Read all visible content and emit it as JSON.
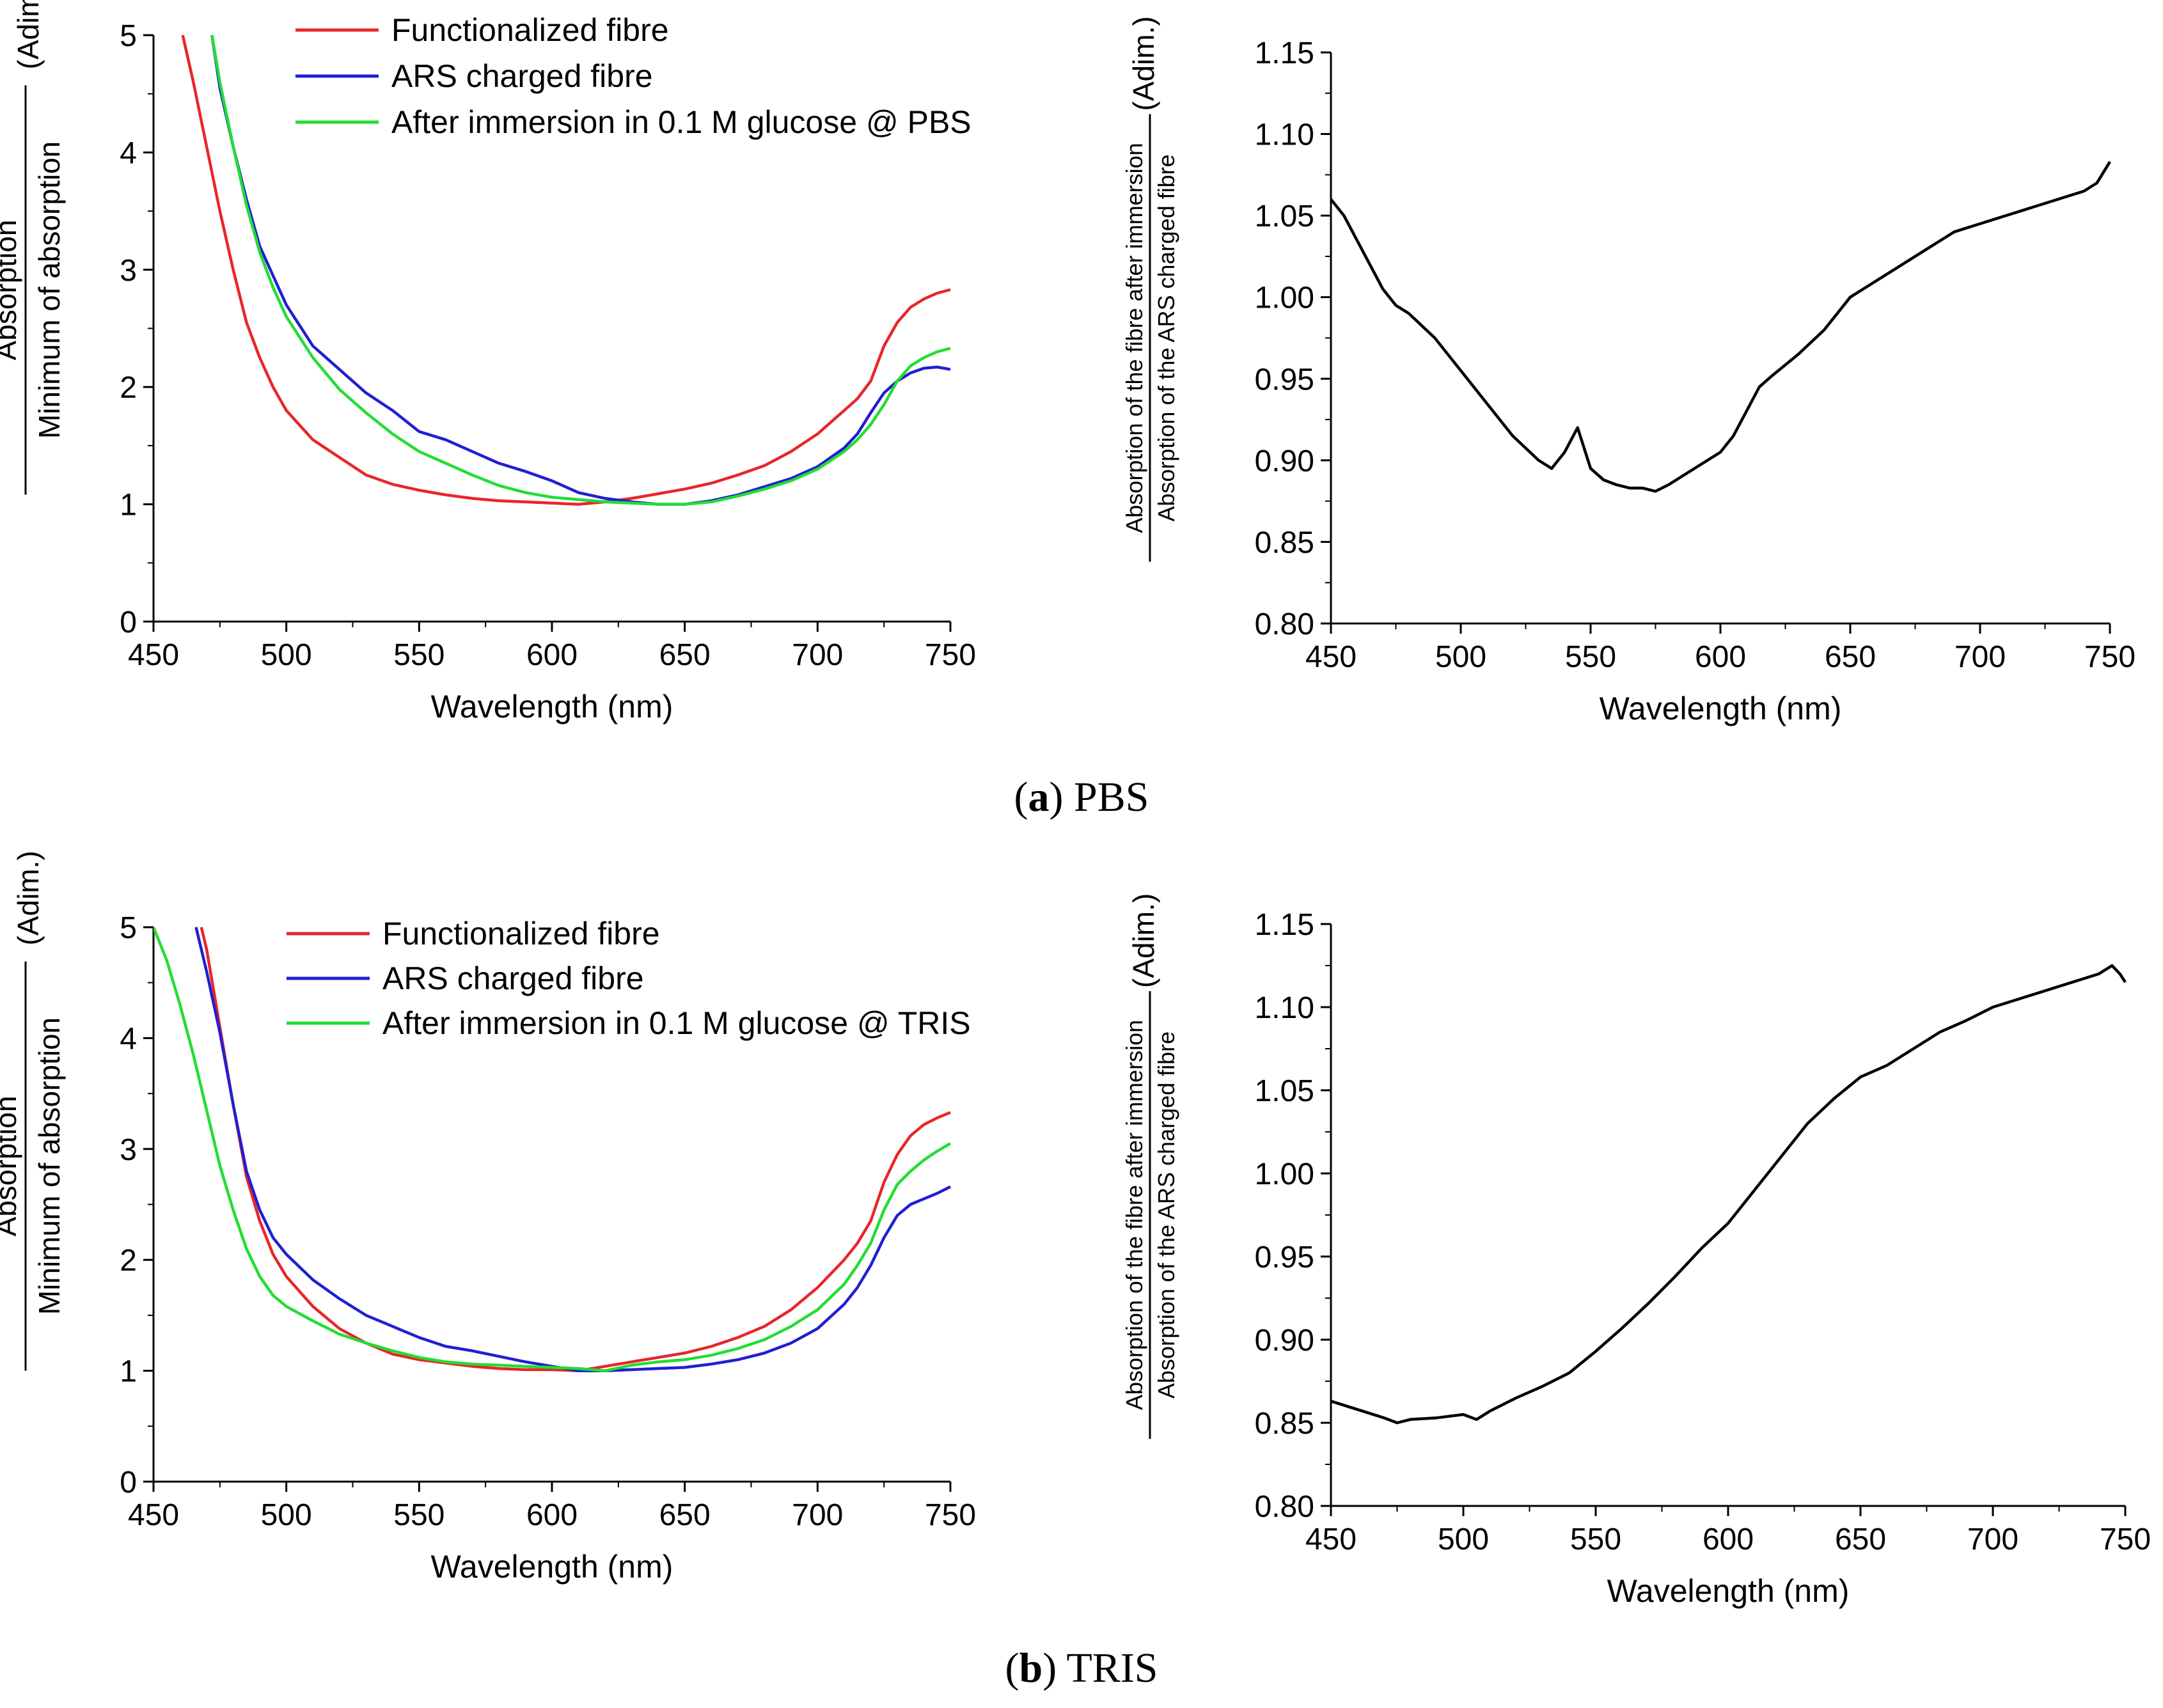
{
  "captions": [
    {
      "letter": "a",
      "text": "PBS"
    },
    {
      "letter": "b",
      "text": "TRIS"
    }
  ],
  "chart_data": [
    {
      "type": "line",
      "panel": "a-left",
      "xlabel": "Wavelength (nm)",
      "ylabel": {
        "numerator": "Absorption",
        "denominator": "Minimum of absorption",
        "unit": "(Adim.)"
      },
      "xlim": [
        450,
        750
      ],
      "ylim": [
        0,
        5
      ],
      "xticks": [
        "450",
        "500",
        "550",
        "600",
        "650",
        "700",
        "750"
      ],
      "yticks": [
        "0",
        "1",
        "2",
        "3",
        "4",
        "5"
      ],
      "legend_position": "top-right",
      "series": [
        {
          "name": "Functionalized fibre",
          "color": "#e8262a",
          "x": [
            461,
            465,
            470,
            475,
            480,
            485,
            490,
            495,
            500,
            510,
            520,
            530,
            540,
            550,
            560,
            570,
            580,
            590,
            600,
            610,
            620,
            630,
            640,
            650,
            660,
            670,
            680,
            690,
            700,
            710,
            715,
            720,
            725,
            730,
            735,
            740,
            745,
            750
          ],
          "y": [
            5.0,
            4.6,
            4.05,
            3.5,
            3.0,
            2.55,
            2.25,
            2.0,
            1.8,
            1.55,
            1.4,
            1.25,
            1.17,
            1.12,
            1.08,
            1.05,
            1.03,
            1.02,
            1.01,
            1.0,
            1.02,
            1.05,
            1.09,
            1.13,
            1.18,
            1.25,
            1.33,
            1.45,
            1.6,
            1.8,
            1.9,
            2.05,
            2.35,
            2.55,
            2.68,
            2.75,
            2.8,
            2.83
          ]
        },
        {
          "name": "ARS charged fibre",
          "color": "#1f1fd2",
          "x": [
            472,
            475,
            480,
            485,
            490,
            495,
            500,
            510,
            520,
            530,
            540,
            550,
            560,
            570,
            580,
            590,
            600,
            610,
            620,
            630,
            640,
            650,
            660,
            670,
            680,
            690,
            700,
            710,
            715,
            720,
            725,
            730,
            735,
            740,
            745,
            750
          ],
          "y": [
            5.0,
            4.55,
            4.05,
            3.6,
            3.2,
            2.95,
            2.7,
            2.35,
            2.15,
            1.95,
            1.8,
            1.62,
            1.55,
            1.45,
            1.35,
            1.28,
            1.2,
            1.1,
            1.05,
            1.02,
            1.0,
            1.0,
            1.03,
            1.08,
            1.15,
            1.22,
            1.32,
            1.48,
            1.6,
            1.78,
            1.95,
            2.05,
            2.12,
            2.16,
            2.17,
            2.15
          ]
        },
        {
          "name": "After immersion in 0.1 M glucose @ PBS",
          "color": "#22dd33",
          "x": [
            472,
            475,
            480,
            485,
            490,
            495,
            500,
            510,
            520,
            530,
            540,
            550,
            560,
            570,
            580,
            590,
            600,
            610,
            620,
            630,
            640,
            650,
            660,
            670,
            680,
            690,
            700,
            710,
            715,
            720,
            725,
            730,
            735,
            740,
            745,
            750
          ],
          "y": [
            5.0,
            4.6,
            4.05,
            3.55,
            3.15,
            2.85,
            2.6,
            2.25,
            1.98,
            1.78,
            1.6,
            1.45,
            1.35,
            1.25,
            1.16,
            1.1,
            1.06,
            1.04,
            1.02,
            1.01,
            1.0,
            1.0,
            1.02,
            1.07,
            1.13,
            1.2,
            1.3,
            1.45,
            1.55,
            1.68,
            1.85,
            2.05,
            2.18,
            2.25,
            2.3,
            2.33
          ]
        }
      ]
    },
    {
      "type": "line",
      "panel": "a-right",
      "xlabel": "Wavelength (nm)",
      "ylabel": {
        "numerator": "Absorption of the fibre after immersion",
        "denominator": "Absorption of the ARS charged fibre",
        "unit": "(Adim.)"
      },
      "xlim": [
        450,
        750
      ],
      "ylim": [
        0.8,
        1.15
      ],
      "xticks": [
        "450",
        "500",
        "550",
        "600",
        "650",
        "700",
        "750"
      ],
      "yticks": [
        "0.80",
        "0.85",
        "0.90",
        "0.95",
        "1.00",
        "1.05",
        "1.10",
        "1.15"
      ],
      "series": [
        {
          "name": "ratio",
          "color": "#000000",
          "x": [
            450,
            455,
            460,
            465,
            470,
            475,
            480,
            490,
            500,
            510,
            520,
            530,
            535,
            540,
            545,
            550,
            555,
            560,
            565,
            570,
            575,
            580,
            585,
            590,
            595,
            600,
            605,
            610,
            615,
            620,
            630,
            640,
            650,
            660,
            670,
            680,
            690,
            700,
            710,
            720,
            730,
            740,
            745,
            750
          ],
          "y": [
            1.06,
            1.05,
            1.035,
            1.02,
            1.005,
            0.995,
            0.99,
            0.975,
            0.955,
            0.935,
            0.915,
            0.9,
            0.895,
            0.905,
            0.92,
            0.895,
            0.888,
            0.885,
            0.883,
            0.883,
            0.881,
            0.885,
            0.89,
            0.895,
            0.9,
            0.905,
            0.915,
            0.93,
            0.945,
            0.952,
            0.965,
            0.98,
            1.0,
            1.01,
            1.02,
            1.03,
            1.04,
            1.045,
            1.05,
            1.055,
            1.06,
            1.065,
            1.07,
            1.083
          ]
        }
      ]
    },
    {
      "type": "line",
      "panel": "b-left",
      "xlabel": "Wavelength (nm)",
      "ylabel": {
        "numerator": "Absorption",
        "denominator": "Minimum of absorption",
        "unit": "(Adim.)"
      },
      "xlim": [
        450,
        750
      ],
      "ylim": [
        0,
        5
      ],
      "xticks": [
        "450",
        "500",
        "550",
        "600",
        "650",
        "700",
        "750"
      ],
      "yticks": [
        "0",
        "1",
        "2",
        "3",
        "4",
        "5"
      ],
      "legend_position": "top-right",
      "series": [
        {
          "name": "Functionalized fibre",
          "color": "#e8262a",
          "x": [
            468,
            470,
            475,
            480,
            485,
            490,
            495,
            500,
            510,
            520,
            530,
            540,
            550,
            560,
            570,
            580,
            590,
            600,
            610,
            620,
            630,
            640,
            650,
            660,
            670,
            680,
            690,
            700,
            710,
            715,
            720,
            725,
            730,
            735,
            740,
            745,
            750
          ],
          "y": [
            5.0,
            4.8,
            4.1,
            3.4,
            2.75,
            2.35,
            2.05,
            1.85,
            1.58,
            1.38,
            1.25,
            1.15,
            1.1,
            1.07,
            1.04,
            1.02,
            1.01,
            1.01,
            1.0,
            1.04,
            1.08,
            1.12,
            1.16,
            1.22,
            1.3,
            1.4,
            1.55,
            1.75,
            2.0,
            2.15,
            2.35,
            2.7,
            2.95,
            3.12,
            3.22,
            3.28,
            3.33
          ]
        },
        {
          "name": "ARS charged fibre",
          "color": "#1f1fd2",
          "x": [
            466,
            470,
            475,
            480,
            485,
            490,
            495,
            500,
            510,
            520,
            530,
            540,
            550,
            560,
            570,
            580,
            590,
            600,
            610,
            620,
            630,
            640,
            650,
            660,
            670,
            680,
            690,
            700,
            710,
            715,
            720,
            725,
            730,
            735,
            740,
            745,
            750
          ],
          "y": [
            5.0,
            4.6,
            4.05,
            3.4,
            2.8,
            2.45,
            2.2,
            2.05,
            1.82,
            1.65,
            1.5,
            1.4,
            1.3,
            1.22,
            1.18,
            1.13,
            1.08,
            1.04,
            1.0,
            1.0,
            1.01,
            1.02,
            1.03,
            1.06,
            1.1,
            1.16,
            1.25,
            1.38,
            1.6,
            1.75,
            1.95,
            2.2,
            2.4,
            2.5,
            2.55,
            2.6,
            2.66
          ]
        },
        {
          "name": "After immersion in 0.1 M glucose @ TRIS",
          "color": "#22dd33",
          "x": [
            450,
            455,
            460,
            465,
            470,
            475,
            480,
            485,
            490,
            495,
            500,
            510,
            520,
            530,
            540,
            550,
            560,
            570,
            580,
            590,
            600,
            610,
            620,
            630,
            640,
            650,
            660,
            670,
            680,
            690,
            700,
            710,
            715,
            720,
            725,
            730,
            735,
            740,
            745,
            750
          ],
          "y": [
            5.0,
            4.7,
            4.3,
            3.85,
            3.35,
            2.85,
            2.45,
            2.1,
            1.85,
            1.68,
            1.58,
            1.45,
            1.33,
            1.25,
            1.18,
            1.12,
            1.08,
            1.06,
            1.05,
            1.04,
            1.03,
            1.02,
            1.0,
            1.05,
            1.08,
            1.1,
            1.14,
            1.2,
            1.28,
            1.4,
            1.55,
            1.78,
            1.95,
            2.15,
            2.45,
            2.68,
            2.8,
            2.9,
            2.98,
            3.05
          ]
        }
      ]
    },
    {
      "type": "line",
      "panel": "b-right",
      "xlabel": "Wavelength (nm)",
      "ylabel": {
        "numerator": "Absorption of the fibre after immersion",
        "denominator": "Absorption of the ARS charged fibre",
        "unit": "(Adim.)"
      },
      "xlim": [
        450,
        750
      ],
      "ylim": [
        0.8,
        1.15
      ],
      "xticks": [
        "450",
        "500",
        "550",
        "600",
        "650",
        "700",
        "750"
      ],
      "yticks": [
        "0.80",
        "0.85",
        "0.90",
        "0.95",
        "1.00",
        "1.05",
        "1.10",
        "1.15"
      ],
      "series": [
        {
          "name": "ratio",
          "color": "#000000",
          "x": [
            450,
            460,
            470,
            475,
            480,
            490,
            500,
            505,
            510,
            520,
            530,
            540,
            550,
            560,
            570,
            580,
            590,
            600,
            610,
            620,
            630,
            640,
            650,
            660,
            670,
            680,
            690,
            700,
            710,
            720,
            730,
            740,
            745,
            748,
            750
          ],
          "y": [
            0.863,
            0.858,
            0.853,
            0.85,
            0.852,
            0.853,
            0.855,
            0.852,
            0.857,
            0.865,
            0.872,
            0.88,
            0.893,
            0.907,
            0.922,
            0.938,
            0.955,
            0.97,
            0.99,
            1.01,
            1.03,
            1.045,
            1.058,
            1.065,
            1.075,
            1.085,
            1.092,
            1.1,
            1.105,
            1.11,
            1.115,
            1.12,
            1.125,
            1.12,
            1.115
          ]
        }
      ]
    }
  ]
}
